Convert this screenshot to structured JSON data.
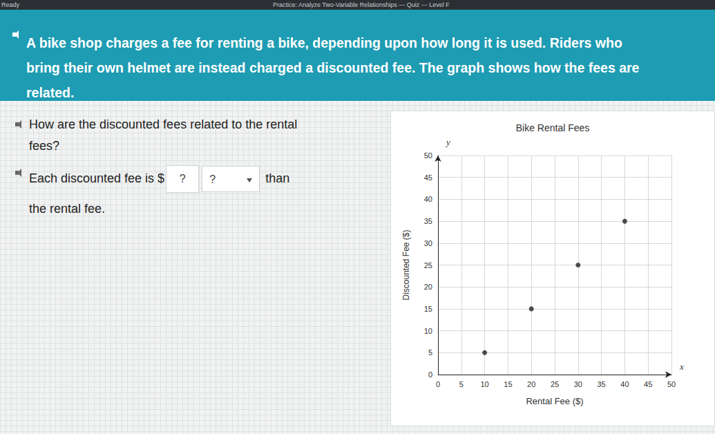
{
  "header": {
    "status": "Ready",
    "title": "Practice: Analyze Two-Variable Relationships — Quiz — Level F"
  },
  "question": "A bike shop charges a fee for renting a bike, depending upon how long it is used. Riders who bring their own helmet are instead charged a discounted fee. The graph shows how the fees are related.",
  "prompt": "How are the discounted fees related to the rental fees?",
  "answer": {
    "before": "Each discounted fee is $",
    "box": "?",
    "dropdown": "?",
    "after": "than",
    "end": "the rental fee."
  },
  "chart_data": {
    "type": "scatter",
    "title": "Bike Rental Fees",
    "x_label": "Rental Fee ($)",
    "y_label": "Discounted Fee ($)",
    "annotations": [
      {
        "text": "y"
      },
      {
        "text": "x"
      }
    ],
    "x": [
      10,
      20,
      30,
      40
    ],
    "values": [
      5,
      15,
      25,
      35
    ],
    "color": "#222222",
    "xlim": [
      0,
      50
    ],
    "xticks": [
      0,
      5,
      10,
      15,
      20,
      25,
      30,
      35,
      40,
      45,
      50
    ],
    "ylim": [
      0,
      50
    ],
    "yticks": [
      0,
      5,
      10,
      15,
      20,
      25,
      30,
      35,
      40,
      45,
      50
    ],
    "grid": true
  }
}
